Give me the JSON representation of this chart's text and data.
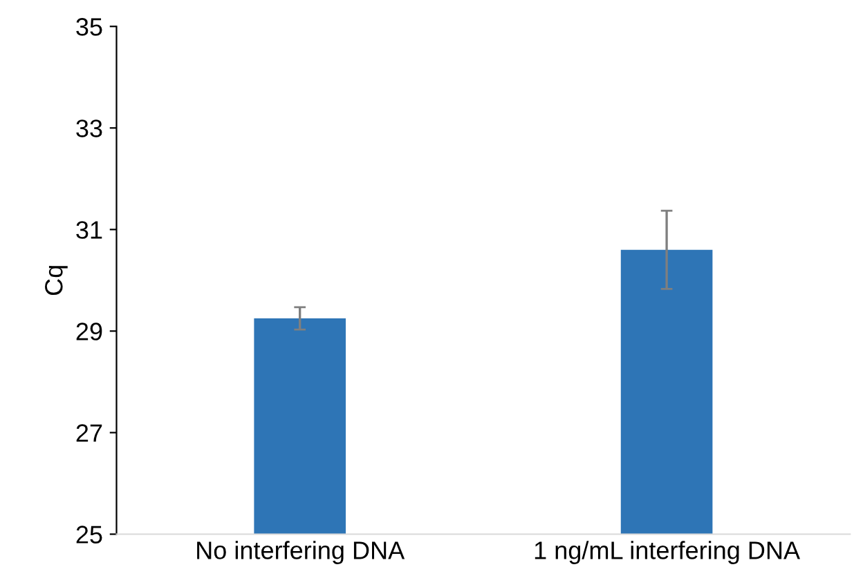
{
  "chart_data": {
    "type": "bar",
    "ylabel": "Cq",
    "categories": [
      "No interfering DNA",
      "1 ng/mL interfering DNA"
    ],
    "values": [
      29.25,
      30.6
    ],
    "errors": [
      0.22,
      0.77
    ],
    "color": "#2e75b6",
    "ylim": [
      25,
      35
    ],
    "yticks": [
      25,
      27,
      29,
      31,
      33,
      35
    ],
    "grid": false
  }
}
